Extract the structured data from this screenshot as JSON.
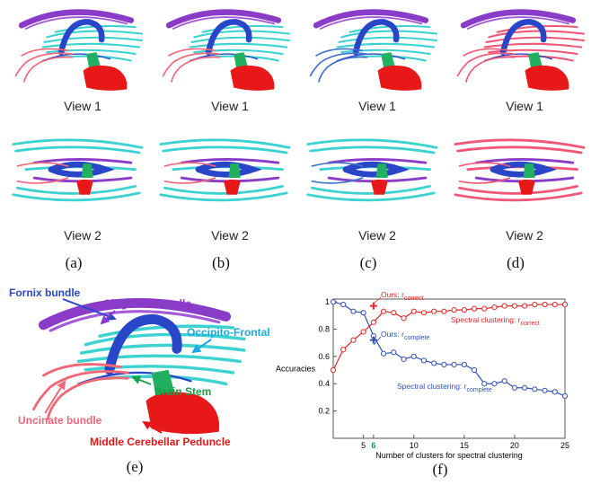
{
  "panels": [
    {
      "caption": "(a)",
      "views": [
        "View 1",
        "View 2"
      ]
    },
    {
      "caption": "(b)",
      "views": [
        "View 1",
        "View 2"
      ]
    },
    {
      "caption": "(c)",
      "views": [
        "View 1",
        "View 2"
      ]
    },
    {
      "caption": "(d)",
      "views": [
        "View 1",
        "View 2"
      ]
    }
  ],
  "panel_e": {
    "caption": "(e)",
    "labels": [
      "Fornix bundle",
      "Cingulum bundle",
      "Occipito-Frontal",
      "Brain Stem",
      "Uncinate bundle",
      "Middle Cerebellar Peduncle"
    ]
  },
  "chart_data": {
    "type": "line",
    "caption": "(f)",
    "x_label": "Number of clusters for spectral clustering",
    "y_label": "Accuracies",
    "x": [
      2,
      3,
      4,
      5,
      6,
      7,
      8,
      9,
      10,
      11,
      12,
      13,
      14,
      15,
      16,
      17,
      18,
      19,
      20,
      21,
      22,
      23,
      24,
      25
    ],
    "series": [
      {
        "name": "Spectral clustering: r",
        "name_subscript": "correct",
        "color": "#e02828",
        "values": [
          0.5,
          0.65,
          0.72,
          0.78,
          0.85,
          0.93,
          0.92,
          0.88,
          0.93,
          0.92,
          0.93,
          0.93,
          0.94,
          0.94,
          0.95,
          0.95,
          0.96,
          0.97,
          0.97,
          0.97,
          0.98,
          0.98,
          0.98,
          0.98
        ]
      },
      {
        "name": "Spectral clustering: r",
        "name_subscript": "complete",
        "color": "#3050b8",
        "values": [
          1.0,
          0.98,
          0.93,
          0.92,
          0.75,
          0.62,
          0.63,
          0.58,
          0.6,
          0.57,
          0.55,
          0.54,
          0.54,
          0.54,
          0.5,
          0.4,
          0.4,
          0.42,
          0.37,
          0.37,
          0.36,
          0.35,
          0.34,
          0.31
        ]
      }
    ],
    "markers": [
      {
        "name": "Ours: r",
        "name_subscript": "correct",
        "color": "#e02828",
        "x": 6,
        "y": 0.97
      },
      {
        "name": "Ours: r",
        "name_subscript": "complete",
        "color": "#3050b8",
        "x": 6,
        "y": 0.72
      }
    ],
    "xlim": [
      2,
      25
    ],
    "ylim": [
      0,
      1.02
    ],
    "xticks": [
      5,
      6,
      10,
      15,
      20,
      25
    ],
    "xtick_colors": [
      "#000000",
      "#1a9a3a",
      "#000000",
      "#000000",
      "#000000",
      "#000000"
    ],
    "yticks": [
      0.2,
      0.4,
      0.6,
      0.8,
      1
    ]
  }
}
